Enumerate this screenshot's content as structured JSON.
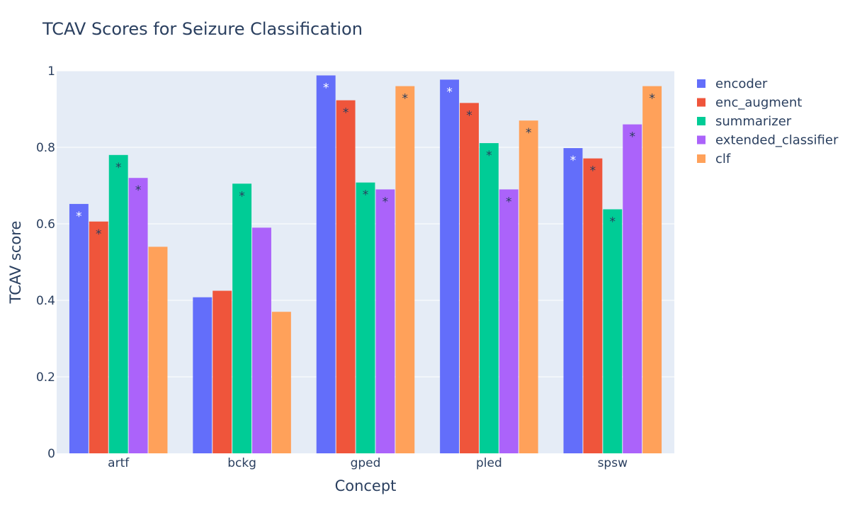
{
  "chart_data": {
    "type": "bar",
    "title": "TCAV Scores for Seizure Classification",
    "xlabel": "Concept",
    "ylabel": "TCAV score",
    "ylim": [
      0,
      1
    ],
    "yticks": [
      0,
      0.2,
      0.4,
      0.6,
      0.8,
      1
    ],
    "ytick_labels": [
      "0",
      "0.2",
      "0.4",
      "0.6",
      "0.8",
      "1"
    ],
    "grid": true,
    "legend_position": "top-right",
    "significance_marker": "*",
    "categories": [
      "artf",
      "bckg",
      "gped",
      "pled",
      "spsw"
    ],
    "series": [
      {
        "name": "encoder",
        "color": "#636efa",
        "marker_color": "#ffffff",
        "values": [
          0.652,
          0.408,
          0.988,
          0.977,
          0.798
        ],
        "significant": [
          true,
          false,
          true,
          true,
          true
        ]
      },
      {
        "name": "enc_augment",
        "color": "#ef553b",
        "marker_color": "#2a3f5f",
        "values": [
          0.606,
          0.425,
          0.923,
          0.916,
          0.771
        ],
        "significant": [
          true,
          false,
          true,
          true,
          true
        ]
      },
      {
        "name": "summarizer",
        "color": "#00cc96",
        "marker_color": "#2a3f5f",
        "values": [
          0.78,
          0.705,
          0.708,
          0.811,
          0.638
        ],
        "significant": [
          true,
          true,
          true,
          true,
          true
        ]
      },
      {
        "name": "extended_classifier",
        "color": "#ab63fa",
        "marker_color": "#2a3f5f",
        "values": [
          0.72,
          0.59,
          0.69,
          0.69,
          0.86
        ],
        "significant": [
          true,
          false,
          true,
          true,
          true
        ]
      },
      {
        "name": "clf",
        "color": "#ffa15a",
        "marker_color": "#2a3f5f",
        "values": [
          0.54,
          0.37,
          0.96,
          0.87,
          0.96
        ],
        "significant": [
          false,
          false,
          true,
          true,
          true
        ]
      }
    ]
  },
  "colors": {
    "plot_background": "#e5ecf6",
    "gridline": "#ffffff",
    "text": "#2a3f5f"
  }
}
